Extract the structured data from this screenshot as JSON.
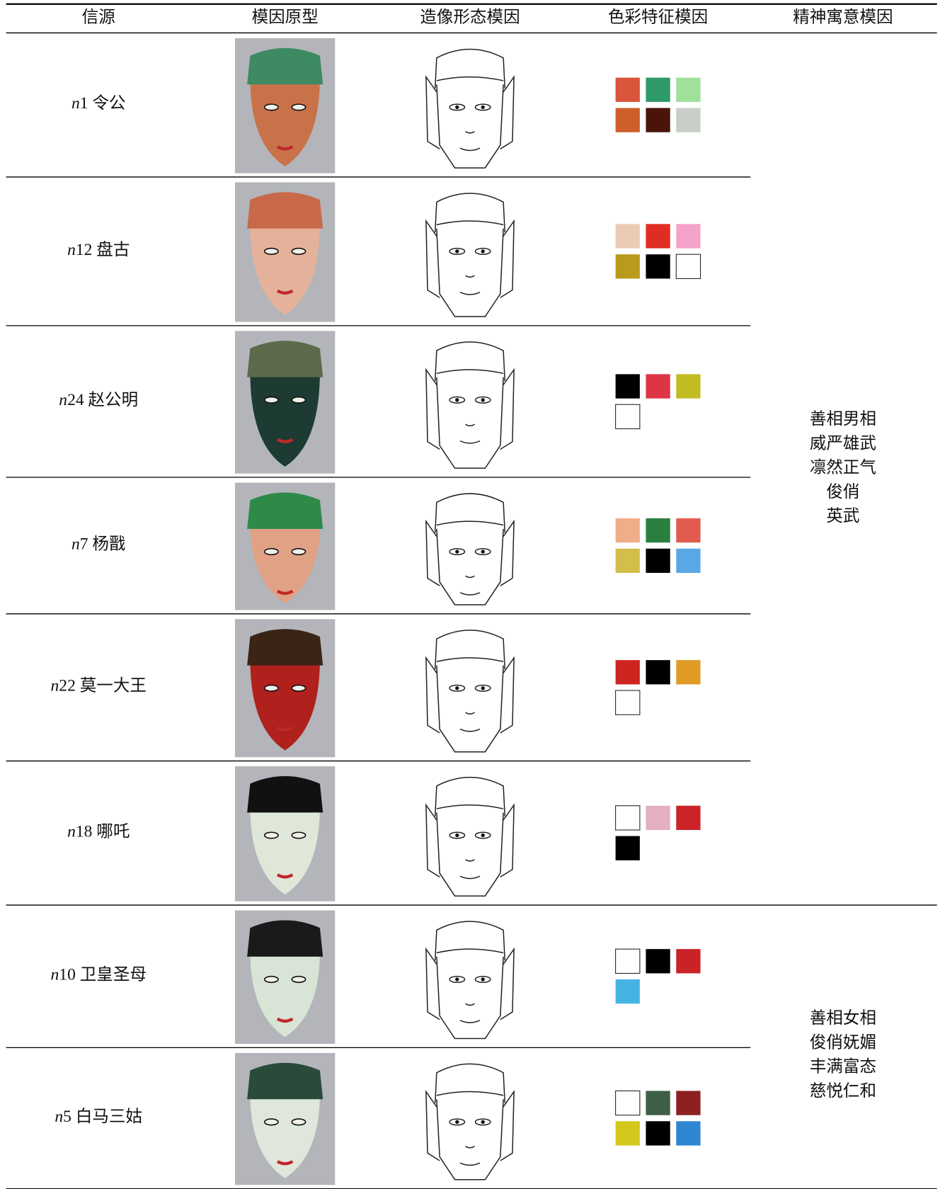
{
  "table": {
    "header": [
      "信源",
      "模因原型",
      "造像形态模因",
      "色彩特征模因",
      "精神寓意模因"
    ],
    "rows": [
      {
        "source": "n1 令公",
        "colors": [
          "#d9553c",
          "#2e9a6a",
          "#9fe09b",
          "#cd5f2a",
          "#4a1508",
          "#c8cfc7"
        ]
      },
      {
        "source": "n12 盘古",
        "colors": [
          "#ebcbb3",
          "#e02d24",
          "#f5a3c8",
          "#b89a1c",
          "#000000",
          "#ffffff"
        ]
      },
      {
        "source": "n24 赵公明",
        "colors": [
          "#000000",
          "#de3545",
          "#c2bb22",
          "#ffffff"
        ]
      },
      {
        "source": "n7 杨戬",
        "colors": [
          "#f0ad8a",
          "#2a7f3f",
          "#e15b50",
          "#d3bd4b",
          "#000000",
          "#5aa7e6"
        ]
      },
      {
        "source": "n22 莫一大王",
        "colors": [
          "#cf2520",
          "#000000",
          "#e09a25",
          "#ffffff"
        ]
      },
      {
        "source": "n18 哪吒",
        "colors": [
          "#ffffff",
          "#e4afc0",
          "#cb2428",
          "#000000"
        ]
      },
      {
        "source": "n10 卫皇圣母",
        "colors": [
          "#ffffff",
          "#000000",
          "#c92227",
          "#46b4e3"
        ]
      },
      {
        "source": "n5 白马三姑",
        "colors": [
          "#ffffff",
          "#3f5e48",
          "#8e2022",
          "#d5c81d",
          "#000000",
          "#2e86d0"
        ]
      }
    ],
    "meaning_groups": [
      {
        "lines": [
          "善相男相",
          "威严雄武",
          "凛然正气",
          "俊俏",
          "英武"
        ]
      },
      {
        "lines": [
          "善相女相",
          "俊俏妩媚",
          "丰满富态",
          "慈悦仁和"
        ]
      }
    ]
  }
}
